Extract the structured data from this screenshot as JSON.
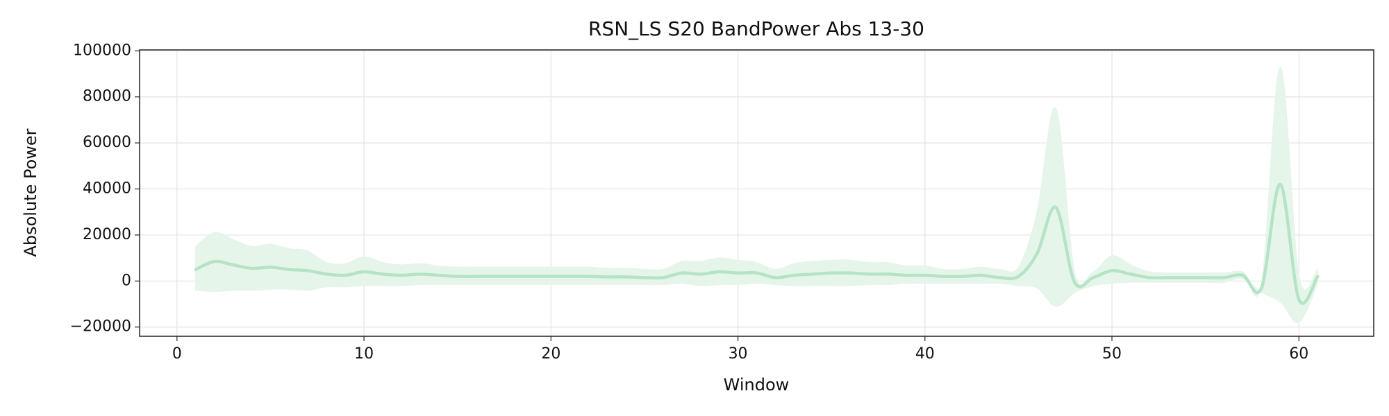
{
  "chart_data": {
    "type": "line",
    "title": "RSN_LS S20 BandPower Abs 13-30",
    "xlabel": "Window",
    "ylabel": "Absolute Power",
    "x": [
      1,
      2,
      3,
      4,
      5,
      6,
      7,
      8,
      9,
      10,
      11,
      12,
      13,
      14,
      15,
      16,
      17,
      18,
      19,
      20,
      21,
      22,
      23,
      24,
      25,
      26,
      27,
      28,
      29,
      30,
      31,
      32,
      33,
      34,
      35,
      36,
      37,
      38,
      39,
      40,
      41,
      42,
      43,
      44,
      45,
      46,
      47,
      48,
      49,
      50,
      51,
      52,
      53,
      54,
      55,
      56,
      57,
      58,
      59,
      60,
      61
    ],
    "series": [
      {
        "name": "BandPower",
        "color": "#b5e3c6",
        "values": [
          5000,
          8500,
          7000,
          5500,
          6000,
          5000,
          4500,
          3000,
          2500,
          4000,
          3000,
          2500,
          3000,
          2500,
          2000,
          2000,
          2000,
          2000,
          2000,
          2000,
          2000,
          2000,
          1800,
          1800,
          1500,
          1500,
          3500,
          3000,
          4000,
          3500,
          3500,
          1500,
          2500,
          3000,
          3500,
          3500,
          3000,
          3000,
          2500,
          2500,
          2000,
          2000,
          2500,
          1500,
          2000,
          12000,
          32000,
          -500,
          1500,
          4500,
          3000,
          1500,
          1500,
          1500,
          1500,
          1500,
          2500,
          -3000,
          42000,
          -8000,
          2000
        ],
        "band_color": "#e6f5ea",
        "upper": [
          15000,
          21000,
          18000,
          15000,
          16000,
          14000,
          13000,
          8000,
          7500,
          10500,
          8000,
          7000,
          7500,
          6500,
          6000,
          6000,
          6000,
          6000,
          6000,
          6000,
          6000,
          6000,
          5500,
          5500,
          5000,
          5000,
          8500,
          8500,
          10000,
          9000,
          8000,
          5000,
          7500,
          8500,
          9000,
          9000,
          8000,
          8000,
          6500,
          6500,
          5000,
          5000,
          6000,
          5000,
          6000,
          30000,
          75000,
          4000,
          4000,
          11000,
          7000,
          4000,
          3500,
          3500,
          3500,
          3500,
          4000,
          -1000,
          93000,
          2000,
          5000
        ],
        "lower": [
          -4000,
          -4500,
          -4000,
          -4000,
          -3500,
          -3500,
          -4000,
          -2500,
          -2500,
          -2000,
          -2000,
          -2000,
          -1500,
          -1500,
          -1500,
          -1500,
          -1500,
          -1500,
          -1500,
          -1500,
          -1500,
          -1500,
          -1500,
          -1500,
          -1500,
          -1500,
          -1000,
          -2000,
          -1500,
          -1500,
          -1000,
          -1500,
          -2000,
          -2000,
          -2000,
          -2000,
          -1500,
          -1500,
          -1000,
          -1000,
          -1000,
          -1000,
          -1000,
          -1000,
          -2000,
          -3000,
          -11000,
          -5000,
          -2000,
          -1000,
          -500,
          -500,
          -500,
          -500,
          -500,
          -500,
          1000,
          -5000,
          -9000,
          -18000,
          -1000
        ]
      }
    ],
    "xlim": [
      -2,
      64
    ],
    "ylim": [
      -24000,
      100400
    ],
    "xticks": [
      0,
      10,
      20,
      30,
      40,
      50,
      60
    ],
    "yticks": [
      {
        "value": -20000,
        "label": "−20000"
      },
      0,
      20000,
      40000,
      60000,
      80000,
      100000
    ],
    "grid": true
  }
}
